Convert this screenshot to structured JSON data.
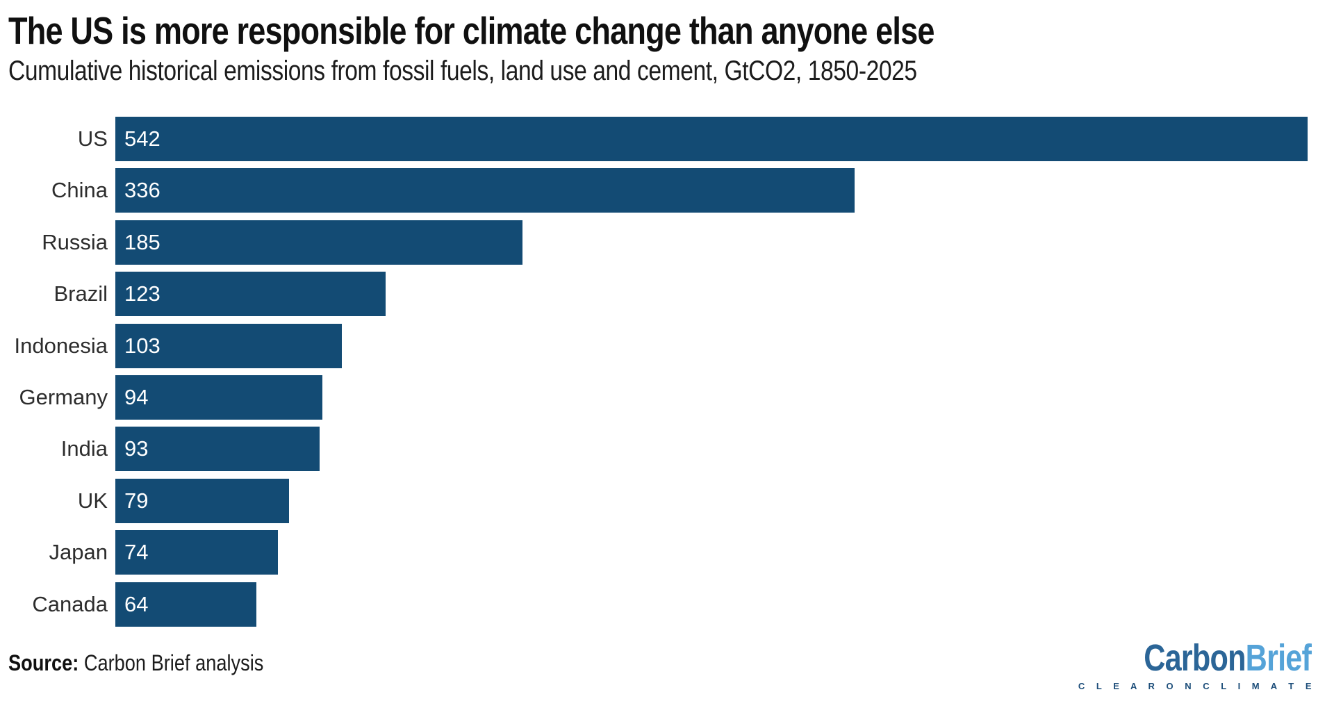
{
  "header": {
    "title": "The US is more responsible for climate change than anyone else",
    "subtitle": "Cumulative historical emissions from fossil fuels, land use and cement, GtCO2, 1850-2025"
  },
  "chart_data": {
    "type": "bar",
    "orientation": "horizontal",
    "title": "The US is more responsible for climate change than anyone else",
    "subtitle": "Cumulative historical emissions from fossil fuels, land use and cement, GtCO2, 1850-2025",
    "categories": [
      "US",
      "China",
      "Russia",
      "Brazil",
      "Indonesia",
      "Germany",
      "India",
      "UK",
      "Japan",
      "Canada"
    ],
    "values": [
      542,
      336,
      185,
      123,
      103,
      94,
      93,
      79,
      74,
      64
    ],
    "xlabel": "",
    "ylabel": "",
    "xlim": [
      0,
      542
    ],
    "grid": false,
    "legend": false,
    "value_label_position": "inside-start",
    "bar_color": "#134B74",
    "value_label_color": "#FFFFFF",
    "category_label_color": "#2D2D2D"
  },
  "footer": {
    "source_label": "Source:",
    "source_text": " Carbon Brief analysis"
  },
  "logo": {
    "part1": "Carbon",
    "part2": "Brief",
    "tagline": "C L E A R   O N   C L I M A T E",
    "part1_color": "#2B6597",
    "part2_color": "#55A3D8",
    "tagline_color": "#1D4E7A"
  }
}
